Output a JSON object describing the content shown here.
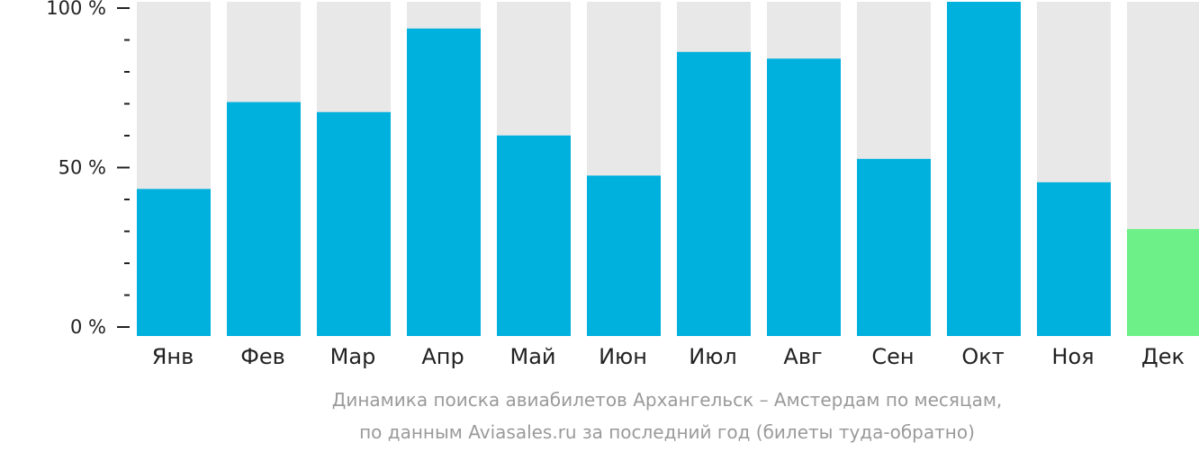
{
  "chart_data": {
    "type": "bar",
    "categories": [
      "Янв",
      "Фев",
      "Мар",
      "Апр",
      "Май",
      "Июн",
      "Июл",
      "Авг",
      "Сен",
      "Окт",
      "Ноя",
      "Дек"
    ],
    "values": [
      44,
      70,
      67,
      92,
      60,
      48,
      85,
      83,
      53,
      100,
      46,
      32
    ],
    "ylim": [
      0,
      100
    ],
    "yticks": [
      {
        "value": 0,
        "label": "0 %"
      },
      {
        "value": 50,
        "label": "50 %"
      },
      {
        "value": 100,
        "label": "100 %"
      }
    ],
    "minor_tick_step": 10,
    "highlight_index": 11,
    "colors": {
      "bar": "#00b0dd",
      "highlight": "#6df088",
      "background_bar": "#e8e8e8",
      "axis": "#222222"
    },
    "caption_lines": [
      "Динамика поиска авиабилетов Архангельск – Амстердам по месяцам,",
      "по данным Aviasales.ru за последний год (билеты туда-обратно)"
    ]
  }
}
